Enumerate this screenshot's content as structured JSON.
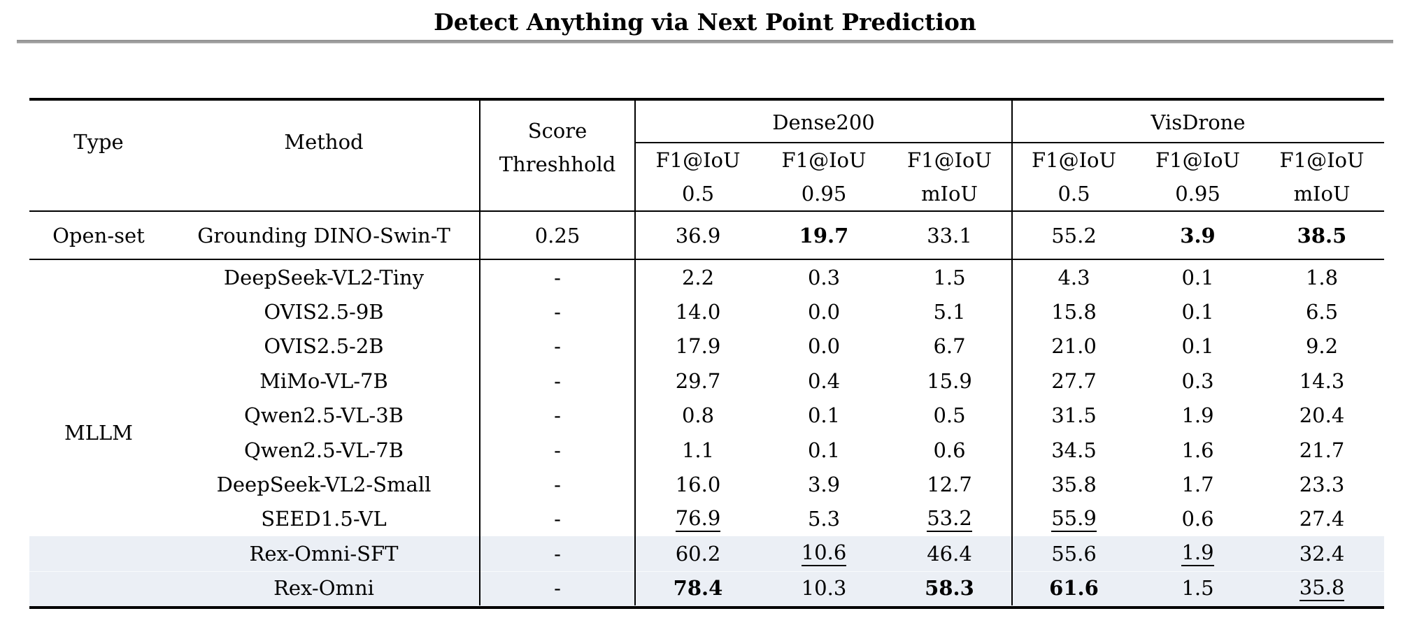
{
  "page_title": "Detect Anything via Next Point Prediction",
  "colors": {
    "highlight_row": "#ebeff5",
    "title_divider_gray": "#9c9c9c"
  },
  "table": {
    "headers": {
      "type": "Type",
      "method": "Method",
      "score_threshold_line1": "Score",
      "score_threshold_line2": "Threshhold",
      "groups": [
        {
          "label": "Dense200",
          "metrics": [
            {
              "line1": "F1@IoU",
              "line2": "0.5"
            },
            {
              "line1": "F1@IoU",
              "line2": "0.95"
            },
            {
              "line1": "F1@IoU",
              "line2": "mIoU"
            }
          ]
        },
        {
          "label": "VisDrone",
          "metrics": [
            {
              "line1": "F1@IoU",
              "line2": "0.5"
            },
            {
              "line1": "F1@IoU",
              "line2": "0.95"
            },
            {
              "line1": "F1@IoU",
              "line2": "mIoU"
            }
          ]
        }
      ]
    },
    "open_set_row": {
      "type": "Open-set",
      "method": "Grounding DINO-Swin-T",
      "score_threshold": "0.25",
      "values": [
        "36.9",
        "19.7",
        "33.1",
        "55.2",
        "3.9",
        "38.5"
      ],
      "emphasis": [
        "none",
        "bold",
        "none",
        "none",
        "bold",
        "bold"
      ]
    },
    "mllm_group_label": "MLLM",
    "mllm_rows": [
      {
        "method": "DeepSeek-VL2-Tiny",
        "score_threshold": "-",
        "values": [
          "2.2",
          "0.3",
          "1.5",
          "4.3",
          "0.1",
          "1.8"
        ],
        "emphasis": [
          "none",
          "none",
          "none",
          "none",
          "none",
          "none"
        ]
      },
      {
        "method": "OVIS2.5-9B",
        "score_threshold": "-",
        "values": [
          "14.0",
          "0.0",
          "5.1",
          "15.8",
          "0.1",
          "6.5"
        ],
        "emphasis": [
          "none",
          "none",
          "none",
          "none",
          "none",
          "none"
        ]
      },
      {
        "method": "OVIS2.5-2B",
        "score_threshold": "-",
        "values": [
          "17.9",
          "0.0",
          "6.7",
          "21.0",
          "0.1",
          "9.2"
        ],
        "emphasis": [
          "none",
          "none",
          "none",
          "none",
          "none",
          "none"
        ]
      },
      {
        "method": "MiMo-VL-7B",
        "score_threshold": "-",
        "values": [
          "29.7",
          "0.4",
          "15.9",
          "27.7",
          "0.3",
          "14.3"
        ],
        "emphasis": [
          "none",
          "none",
          "none",
          "none",
          "none",
          "none"
        ]
      },
      {
        "method": "Qwen2.5-VL-3B",
        "score_threshold": "-",
        "values": [
          "0.8",
          "0.1",
          "0.5",
          "31.5",
          "1.9",
          "20.4"
        ],
        "emphasis": [
          "none",
          "none",
          "none",
          "none",
          "none",
          "none"
        ]
      },
      {
        "method": "Qwen2.5-VL-7B",
        "score_threshold": "-",
        "values": [
          "1.1",
          "0.1",
          "0.6",
          "34.5",
          "1.6",
          "21.7"
        ],
        "emphasis": [
          "none",
          "none",
          "none",
          "none",
          "none",
          "none"
        ]
      },
      {
        "method": "DeepSeek-VL2-Small",
        "score_threshold": "-",
        "values": [
          "16.0",
          "3.9",
          "12.7",
          "35.8",
          "1.7",
          "23.3"
        ],
        "emphasis": [
          "none",
          "none",
          "none",
          "none",
          "none",
          "none"
        ]
      },
      {
        "method": "SEED1.5-VL",
        "score_threshold": "-",
        "values": [
          "76.9",
          "5.3",
          "53.2",
          "55.9",
          "0.6",
          "27.4"
        ],
        "emphasis": [
          "underline",
          "none",
          "underline",
          "underline",
          "none",
          "none"
        ]
      },
      {
        "method": "Rex-Omni-SFT",
        "score_threshold": "-",
        "values": [
          "60.2",
          "10.6",
          "46.4",
          "55.6",
          "1.9",
          "32.4"
        ],
        "emphasis": [
          "none",
          "underline",
          "none",
          "none",
          "underline",
          "none"
        ],
        "highlighted": true
      },
      {
        "method": "Rex-Omni",
        "score_threshold": "-",
        "values": [
          "78.4",
          "10.3",
          "58.3",
          "61.6",
          "1.5",
          "35.8"
        ],
        "emphasis": [
          "bold",
          "none",
          "bold",
          "bold",
          "none",
          "underline"
        ],
        "highlighted": true
      }
    ]
  }
}
